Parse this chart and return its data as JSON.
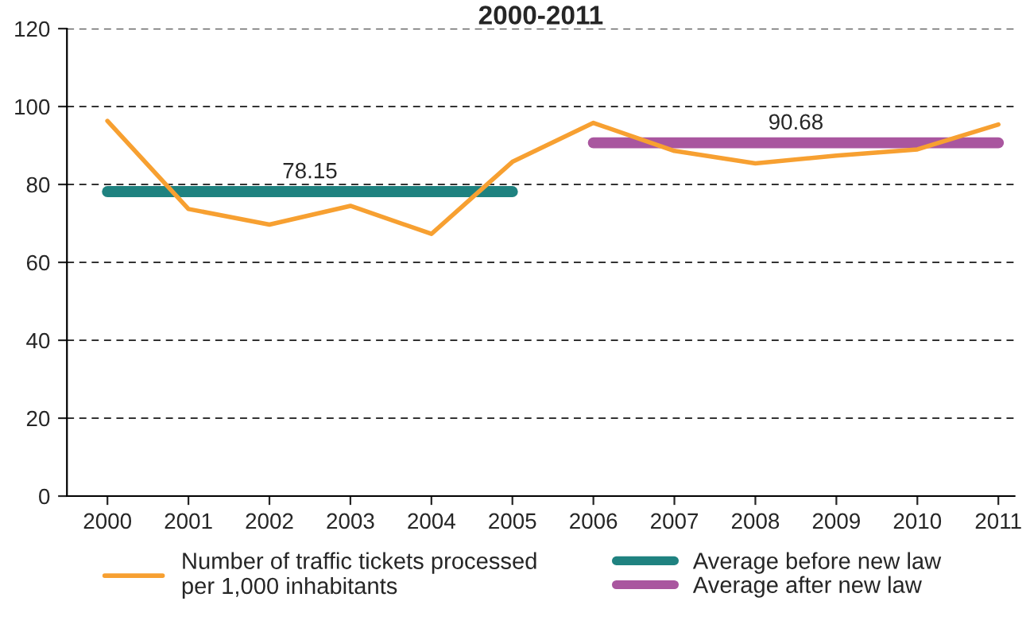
{
  "chart_data": {
    "type": "line",
    "title": "2000-2011",
    "xlim": [
      1999.5,
      2011.2
    ],
    "xticks": [
      2000,
      2001,
      2002,
      2003,
      2004,
      2005,
      2006,
      2007,
      2008,
      2009,
      2010,
      2011
    ],
    "ylim": [
      0,
      120
    ],
    "yticks": [
      0,
      20,
      40,
      60,
      80,
      100,
      120
    ],
    "grid": "y",
    "legend": "bottom",
    "line_style": "solid",
    "series": [
      {
        "name": "Number of traffic tickets processed\nper 1,000 inhabitants",
        "color": "#f7a031",
        "x": [
          2000,
          2001,
          2002,
          2003,
          2004,
          2005,
          2006,
          2007,
          2008,
          2009,
          2010,
          2011
        ],
        "values": [
          96.3,
          73.7,
          69.7,
          74.5,
          67.3,
          85.8,
          95.8,
          88.6,
          85.4,
          87.4,
          89.0,
          95.4
        ]
      },
      {
        "name": "Average before new law",
        "color": "#1f8280",
        "x": [
          2000,
          2005
        ],
        "values": [
          78.15,
          78.15
        ]
      },
      {
        "name": "Average after new law",
        "color": "#a9569f",
        "x": [
          2006,
          2011
        ],
        "values": [
          90.68,
          90.68
        ]
      }
    ],
    "annotations": [
      {
        "text": "78.15",
        "x": 2002.5,
        "y": 78.15
      },
      {
        "text": "90.68",
        "x": 2008.5,
        "y": 90.68
      }
    ]
  }
}
